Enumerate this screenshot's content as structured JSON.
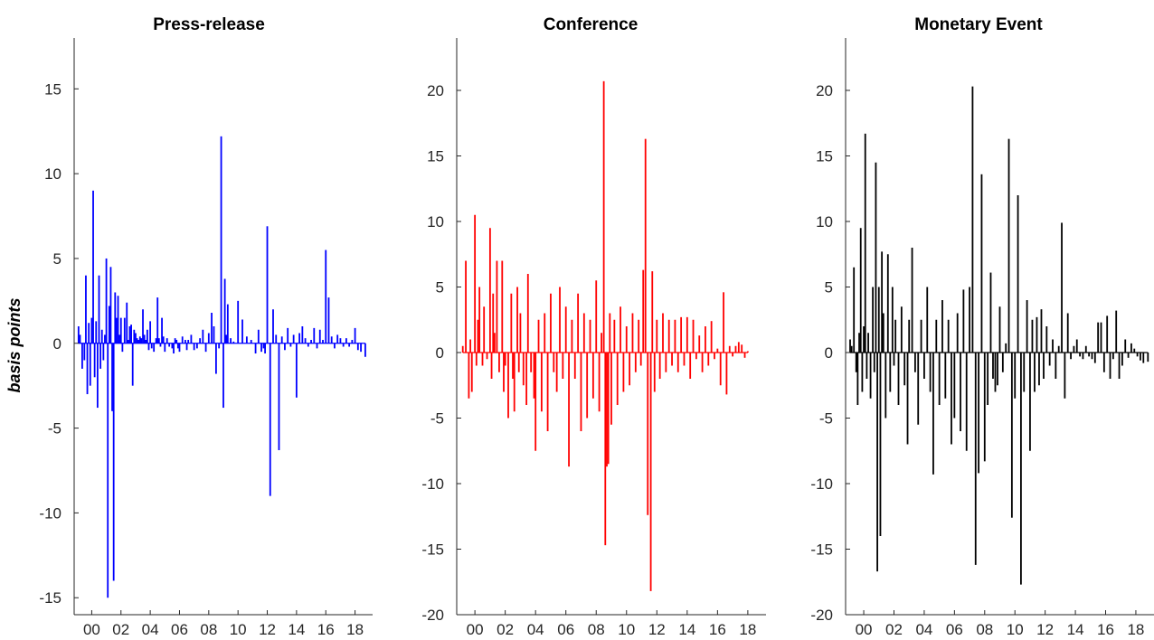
{
  "chart_data": [
    {
      "type": "bar",
      "title": "Press-release",
      "ylabel": "basis points",
      "color": "#0000ff",
      "ylim": [
        -16,
        18
      ],
      "yticks": [
        -15,
        -10,
        -5,
        0,
        5,
        10,
        15
      ],
      "xlim": [
        1998.8,
        2019.2
      ],
      "xticks": [
        2000,
        2002,
        2004,
        2006,
        2008,
        2010,
        2012,
        2014,
        2016,
        2018
      ],
      "xtick_labels": [
        "00",
        "02",
        "04",
        "06",
        "08",
        "10",
        "12",
        "14",
        "16",
        "18"
      ],
      "x": [
        1999.1,
        1999.2,
        1999.35,
        1999.5,
        1999.6,
        1999.7,
        1999.8,
        1999.9,
        2000.0,
        2000.1,
        2000.2,
        2000.3,
        2000.4,
        2000.5,
        2000.6,
        2000.7,
        2000.8,
        2000.9,
        2001.0,
        2001.1,
        2001.2,
        2001.3,
        2001.4,
        2001.5,
        2001.6,
        2001.7,
        2001.8,
        2001.9,
        2002.0,
        2002.1,
        2002.25,
        2002.4,
        2002.5,
        2002.6,
        2002.7,
        2002.8,
        2002.9,
        2003.0,
        2003.1,
        2003.2,
        2003.3,
        2003.4,
        2003.5,
        2003.6,
        2003.7,
        2003.8,
        2003.9,
        2004.0,
        2004.1,
        2004.25,
        2004.4,
        2004.5,
        2004.6,
        2004.7,
        2004.8,
        2004.9,
        2005.0,
        2005.15,
        2005.3,
        2005.5,
        2005.6,
        2005.7,
        2005.8,
        2005.9,
        2006.0,
        2006.2,
        2006.4,
        2006.5,
        2006.6,
        2006.8,
        2007.0,
        2007.2,
        2007.4,
        2007.6,
        2007.8,
        2008.0,
        2008.2,
        2008.35,
        2008.5,
        2008.7,
        2008.85,
        2009.0,
        2009.1,
        2009.2,
        2009.3,
        2009.5,
        2009.7,
        2010.0,
        2010.3,
        2010.6,
        2010.9,
        2011.2,
        2011.4,
        2011.6,
        2011.75,
        2011.85,
        2012.0,
        2012.2,
        2012.4,
        2012.6,
        2012.8,
        2013.0,
        2013.2,
        2013.4,
        2013.6,
        2013.8,
        2014.0,
        2014.2,
        2014.4,
        2014.6,
        2014.8,
        2015.0,
        2015.2,
        2015.4,
        2015.6,
        2015.8,
        2016.0,
        2016.2,
        2016.4,
        2016.6,
        2016.8,
        2017.0,
        2017.2,
        2017.4,
        2017.6,
        2017.8,
        2018.0,
        2018.2,
        2018.4,
        2018.7
      ],
      "values": [
        1.0,
        0.5,
        -1.5,
        -1.0,
        4.0,
        -3.0,
        1.2,
        -2.5,
        1.5,
        9.0,
        -2.0,
        1.3,
        -3.8,
        4.0,
        -1.5,
        0.8,
        -1.0,
        0.5,
        5.0,
        -15.0,
        2.2,
        4.5,
        -4.0,
        -14.0,
        3.0,
        1.5,
        2.8,
        0.5,
        1.5,
        -0.5,
        1.5,
        2.4,
        0.2,
        1.0,
        1.1,
        -2.5,
        0.8,
        0.6,
        0.3,
        0.2,
        0.4,
        0.3,
        2.0,
        0.5,
        0.2,
        0.8,
        -0.4,
        1.3,
        -0.3,
        -0.5,
        0.3,
        2.7,
        0.3,
        -0.2,
        1.5,
        0.4,
        -0.5,
        0.3,
        -0.2,
        -0.3,
        -0.6,
        0.3,
        0.2,
        -0.3,
        -0.5,
        0.4,
        0.2,
        -0.4,
        0.2,
        0.5,
        -0.4,
        -0.3,
        0.3,
        0.8,
        -0.5,
        0.6,
        1.8,
        1.0,
        -1.8,
        -0.3,
        12.2,
        -3.8,
        3.8,
        0.5,
        2.3,
        0.3,
        0.1,
        2.5,
        1.4,
        0.4,
        0.2,
        -0.6,
        0.8,
        -0.5,
        -0.3,
        -0.6,
        6.9,
        -9.0,
        2.0,
        0.5,
        -6.3,
        0.4,
        -0.4,
        0.9,
        -0.2,
        0.5,
        -3.2,
        0.6,
        1.0,
        0.3,
        -0.2,
        0.2,
        0.9,
        -0.3,
        0.8,
        0.2,
        5.5,
        2.7,
        0.4,
        -0.3,
        0.5,
        0.3,
        -0.2,
        0.3,
        -0.2,
        0.2,
        0.9,
        -0.4,
        -0.5,
        -0.8
      ]
    },
    {
      "type": "bar",
      "title": "Conference",
      "ylabel": "",
      "color": "#ff0000",
      "ylim": [
        -20,
        24
      ],
      "yticks": [
        -20,
        -15,
        -10,
        -5,
        0,
        5,
        10,
        15,
        20
      ],
      "xlim": [
        1998.8,
        2019.2
      ],
      "xticks": [
        2000,
        2002,
        2004,
        2006,
        2008,
        2010,
        2012,
        2014,
        2016,
        2018
      ],
      "xtick_labels": [
        "00",
        "02",
        "04",
        "06",
        "08",
        "10",
        "12",
        "14",
        "16",
        "18"
      ],
      "x": [
        1999.2,
        1999.4,
        1999.6,
        1999.7,
        1999.8,
        2000.0,
        2000.1,
        2000.2,
        2000.3,
        2000.5,
        2000.6,
        2000.8,
        2001.0,
        2001.1,
        2001.2,
        2001.3,
        2001.45,
        2001.6,
        2001.8,
        2001.9,
        2002.0,
        2002.2,
        2002.4,
        2002.5,
        2002.6,
        2002.8,
        2002.9,
        2003.0,
        2003.2,
        2003.4,
        2003.5,
        2003.7,
        2003.9,
        2004.0,
        2004.2,
        2004.4,
        2004.6,
        2004.8,
        2005.0,
        2005.2,
        2005.4,
        2005.6,
        2005.8,
        2006.0,
        2006.2,
        2006.4,
        2006.6,
        2006.8,
        2007.0,
        2007.2,
        2007.4,
        2007.6,
        2007.8,
        2008.0,
        2008.2,
        2008.35,
        2008.5,
        2008.6,
        2008.7,
        2008.8,
        2008.9,
        2009.0,
        2009.2,
        2009.4,
        2009.6,
        2009.8,
        2010.0,
        2010.2,
        2010.4,
        2010.6,
        2010.8,
        2010.95,
        2011.1,
        2011.25,
        2011.4,
        2011.6,
        2011.7,
        2011.85,
        2012.0,
        2012.2,
        2012.4,
        2012.6,
        2012.8,
        2013.0,
        2013.2,
        2013.4,
        2013.6,
        2013.8,
        2014.0,
        2014.2,
        2014.4,
        2014.6,
        2014.8,
        2015.0,
        2015.2,
        2015.4,
        2015.6,
        2015.8,
        2016.0,
        2016.2,
        2016.4,
        2016.6,
        2016.8,
        2017.0,
        2017.2,
        2017.4,
        2017.6,
        2017.8,
        2018.0
      ],
      "values": [
        0.5,
        7.0,
        -3.5,
        1.0,
        -3.0,
        10.5,
        -1.0,
        2.5,
        5.0,
        -1.0,
        3.5,
        -0.5,
        9.5,
        -2.0,
        4.5,
        1.5,
        7.0,
        -1.5,
        7.0,
        -3.0,
        -1.0,
        -5.0,
        4.5,
        -2.0,
        -4.5,
        5.0,
        -1.5,
        3.0,
        -2.5,
        -4.0,
        6.0,
        -1.5,
        -3.5,
        -7.5,
        2.5,
        -4.5,
        3.0,
        -6.0,
        4.5,
        -1.5,
        -3.0,
        5.0,
        -2.0,
        3.5,
        -8.7,
        2.5,
        -2.0,
        4.5,
        -6.0,
        3.0,
        -5.0,
        2.5,
        -3.5,
        5.5,
        -4.5,
        1.5,
        20.7,
        -14.7,
        -8.7,
        -8.5,
        3.0,
        -5.5,
        2.5,
        -4.0,
        3.5,
        -3.0,
        2.0,
        -2.5,
        3.0,
        -1.5,
        2.5,
        -1.0,
        6.3,
        16.3,
        -12.4,
        -18.2,
        6.2,
        -3.0,
        2.5,
        -2.0,
        3.0,
        -1.5,
        2.5,
        -1.0,
        2.5,
        -1.5,
        2.7,
        -1.0,
        2.7,
        -2.0,
        2.5,
        -0.5,
        1.3,
        -1.5,
        2.0,
        -1.0,
        2.4,
        -0.5,
        0.3,
        -2.5,
        4.6,
        -3.2,
        0.5,
        -0.3,
        0.5,
        0.8,
        0.6,
        -0.4,
        0.1
      ]
    },
    {
      "type": "bar",
      "title": "Monetary Event",
      "ylabel": "",
      "color": "#000000",
      "ylim": [
        -20,
        24
      ],
      "yticks": [
        -20,
        -15,
        -10,
        -5,
        0,
        5,
        10,
        15,
        20
      ],
      "xlim": [
        1998.8,
        2019.2
      ],
      "xticks": [
        2000,
        2002,
        2004,
        2006,
        2008,
        2010,
        2012,
        2014,
        2016,
        2018
      ],
      "xtick_labels": [
        "00",
        "02",
        "04",
        "06",
        "08",
        "10",
        "12",
        "14",
        "16",
        "18"
      ],
      "x": [
        1999.1,
        1999.2,
        1999.35,
        1999.5,
        1999.6,
        1999.7,
        1999.8,
        1999.9,
        2000.0,
        2000.1,
        2000.2,
        2000.3,
        2000.45,
        2000.6,
        2000.7,
        2000.8,
        2000.9,
        2001.0,
        2001.1,
        2001.2,
        2001.3,
        2001.45,
        2001.6,
        2001.75,
        2001.9,
        2002.0,
        2002.1,
        2002.3,
        2002.5,
        2002.7,
        2002.9,
        2003.0,
        2003.2,
        2003.4,
        2003.6,
        2003.8,
        2004.0,
        2004.2,
        2004.4,
        2004.6,
        2004.8,
        2005.0,
        2005.2,
        2005.4,
        2005.6,
        2005.8,
        2006.0,
        2006.2,
        2006.4,
        2006.6,
        2006.8,
        2007.0,
        2007.2,
        2007.4,
        2007.6,
        2007.8,
        2008.0,
        2008.2,
        2008.4,
        2008.55,
        2008.7,
        2008.85,
        2009.0,
        2009.2,
        2009.4,
        2009.6,
        2009.8,
        2010.0,
        2010.2,
        2010.4,
        2010.6,
        2010.8,
        2011.0,
        2011.15,
        2011.3,
        2011.45,
        2011.6,
        2011.75,
        2011.9,
        2012.1,
        2012.3,
        2012.5,
        2012.7,
        2012.9,
        2013.1,
        2013.3,
        2013.5,
        2013.7,
        2013.9,
        2014.1,
        2014.3,
        2014.5,
        2014.7,
        2014.9,
        2015.1,
        2015.3,
        2015.5,
        2015.7,
        2015.9,
        2016.1,
        2016.3,
        2016.5,
        2016.7,
        2016.9,
        2017.1,
        2017.3,
        2017.5,
        2017.7,
        2017.9,
        2018.1,
        2018.3,
        2018.5,
        2018.8
      ],
      "values": [
        1.0,
        0.5,
        6.5,
        -1.5,
        -4.0,
        1.5,
        9.5,
        -3.0,
        2.0,
        16.7,
        -2.0,
        1.5,
        -3.5,
        5.0,
        -1.5,
        14.5,
        -16.7,
        5.0,
        -14.0,
        7.7,
        3.0,
        -5.0,
        7.5,
        -3.0,
        5.0,
        -1.0,
        2.5,
        -4.0,
        3.5,
        -2.5,
        -7.0,
        2.5,
        8.0,
        -1.5,
        -5.5,
        2.5,
        -2.0,
        5.0,
        -3.0,
        -9.3,
        2.5,
        -4.0,
        4.0,
        -3.5,
        2.5,
        -7.0,
        -5.0,
        3.0,
        -6.0,
        4.8,
        -7.5,
        5.0,
        20.3,
        -16.2,
        -9.2,
        13.6,
        -8.3,
        -4.0,
        6.1,
        -2.0,
        -3.0,
        -2.5,
        3.5,
        -1.5,
        0.7,
        16.3,
        -12.6,
        -3.5,
        12.0,
        -17.7,
        -3.0,
        4.0,
        -7.5,
        2.5,
        -3.0,
        2.7,
        -2.5,
        3.3,
        -2.0,
        2.0,
        -1.0,
        1.0,
        -2.0,
        0.5,
        9.9,
        -3.5,
        3.0,
        -0.5,
        0.5,
        1.0,
        -0.3,
        -0.5,
        0.5,
        -0.3,
        -0.5,
        -0.8,
        2.3,
        2.3,
        -1.5,
        2.8,
        -2.0,
        -0.5,
        3.2,
        -2.0,
        -1.0,
        1.0,
        -0.4,
        0.7,
        0.3,
        -0.3,
        -0.6,
        -0.8,
        -0.7
      ]
    }
  ]
}
